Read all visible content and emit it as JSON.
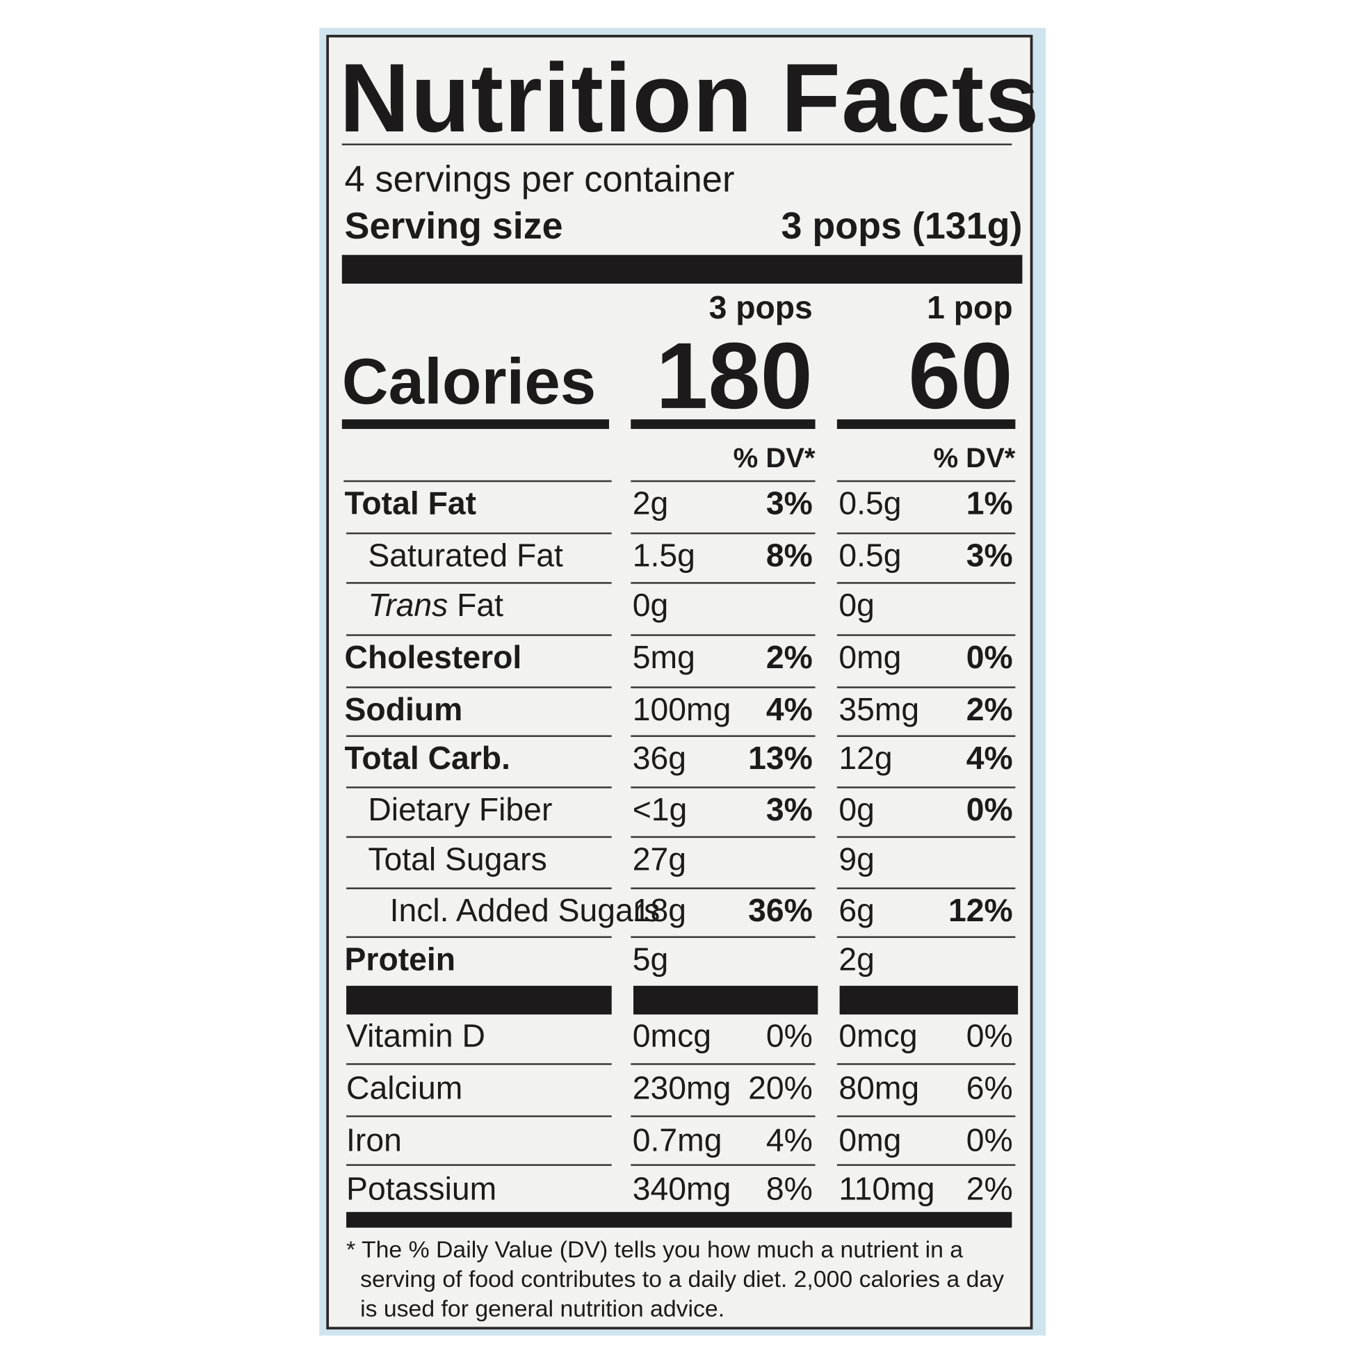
{
  "title": "Nutrition Facts",
  "servings_per_container": "4 servings per container",
  "serving_size": {
    "label": "Serving size",
    "value": "3 pops (131g)"
  },
  "calories_label": "Calories",
  "columns": [
    {
      "header": "3 pops",
      "calories": "180",
      "dv_header": "% DV*"
    },
    {
      "header": "1 pop",
      "calories": "60",
      "dv_header": "% DV*"
    }
  ],
  "nutrients": [
    {
      "name": "Total Fat",
      "bold": true,
      "indent": 0,
      "values": [
        {
          "amount": "2g",
          "dv": "3%"
        },
        {
          "amount": "0.5g",
          "dv": "1%"
        }
      ]
    },
    {
      "name": "Saturated Fat",
      "bold": false,
      "indent": 1,
      "values": [
        {
          "amount": "1.5g",
          "dv": "8%"
        },
        {
          "amount": "0.5g",
          "dv": "3%"
        }
      ]
    },
    {
      "name_italic": "Trans",
      "name": "Fat",
      "bold": false,
      "indent": 1,
      "values": [
        {
          "amount": "0g"
        },
        {
          "amount": "0g"
        }
      ]
    },
    {
      "name": "Cholesterol",
      "bold": true,
      "indent": 0,
      "values": [
        {
          "amount": "5mg",
          "dv": "2%"
        },
        {
          "amount": "0mg",
          "dv": "0%"
        }
      ]
    },
    {
      "name": "Sodium",
      "bold": true,
      "indent": 0,
      "values": [
        {
          "amount": "100mg",
          "dv": "4%"
        },
        {
          "amount": "35mg",
          "dv": "2%"
        }
      ]
    },
    {
      "name": "Total Carb.",
      "bold": true,
      "indent": 0,
      "values": [
        {
          "amount": "36g",
          "dv": "13%"
        },
        {
          "amount": "12g",
          "dv": "4%"
        }
      ]
    },
    {
      "name": "Dietary Fiber",
      "bold": false,
      "indent": 1,
      "values": [
        {
          "amount": "<1g",
          "dv": "3%"
        },
        {
          "amount": "0g",
          "dv": "0%"
        }
      ]
    },
    {
      "name": "Total Sugars",
      "bold": false,
      "indent": 1,
      "values": [
        {
          "amount": "27g"
        },
        {
          "amount": "9g"
        }
      ]
    },
    {
      "name": "Incl. Added Sugars",
      "bold": false,
      "indent": 2,
      "values": [
        {
          "amount": "18g",
          "dv": "36%"
        },
        {
          "amount": "6g",
          "dv": "12%"
        }
      ]
    },
    {
      "name": "Protein",
      "bold": true,
      "indent": 0,
      "values": [
        {
          "amount": "5g"
        },
        {
          "amount": "2g"
        }
      ]
    }
  ],
  "vitamins": [
    {
      "name": "Vitamin D",
      "values": [
        {
          "amount": "0mcg",
          "dv": "0%"
        },
        {
          "amount": "0mcg",
          "dv": "0%"
        }
      ]
    },
    {
      "name": "Calcium",
      "values": [
        {
          "amount": "230mg",
          "dv": "20%"
        },
        {
          "amount": "80mg",
          "dv": "6%"
        }
      ]
    },
    {
      "name": "Iron",
      "values": [
        {
          "amount": "0.7mg",
          "dv": "4%"
        },
        {
          "amount": "0mg",
          "dv": "0%"
        }
      ]
    },
    {
      "name": "Potassium",
      "values": [
        {
          "amount": "340mg",
          "dv": "8%"
        },
        {
          "amount": "110mg",
          "dv": "2%"
        }
      ]
    }
  ],
  "footnote": "* The % Daily Value (DV) tells you how much a nutrient in a serving of food contributes to a daily diet. 2,000 calories a day is used for general nutrition advice."
}
